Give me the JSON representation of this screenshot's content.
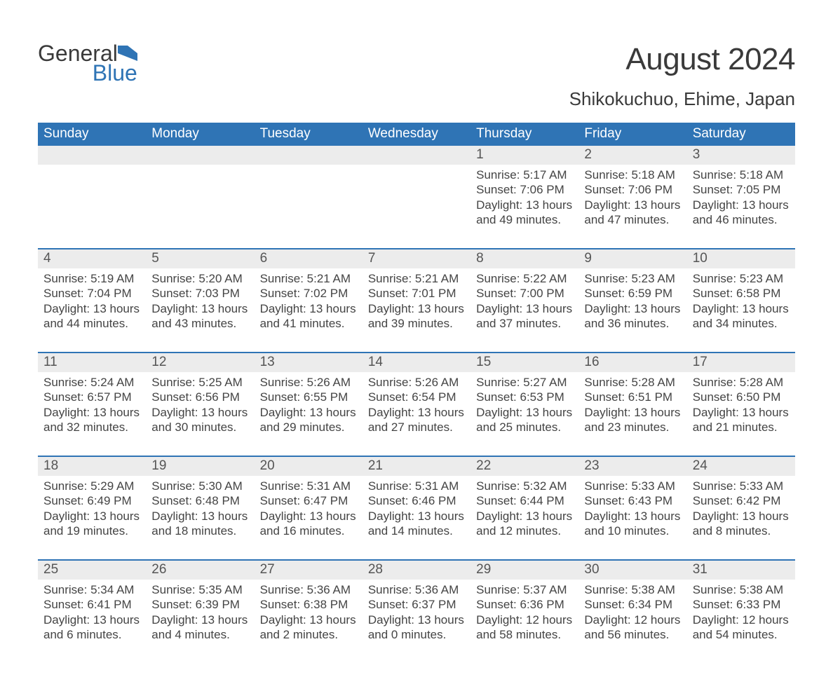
{
  "logo": {
    "word1": "General",
    "word2": "Blue",
    "icon_color": "#2f74b5",
    "text_color": "#3a3a3a"
  },
  "title": "August 2024",
  "subtitle": "Shikokuchuo, Ehime, Japan",
  "colors": {
    "header_bg": "#2f74b5",
    "header_text": "#ffffff",
    "daynum_bg": "#ececec",
    "daynum_text": "#555555",
    "body_text": "#444444",
    "row_divider": "#2f74b5",
    "page_bg": "#ffffff"
  },
  "fonts": {
    "title_size": 44,
    "subtitle_size": 26,
    "header_size": 19,
    "daynum_size": 19,
    "cell_size": 17
  },
  "weekdays": [
    "Sunday",
    "Monday",
    "Tuesday",
    "Wednesday",
    "Thursday",
    "Friday",
    "Saturday"
  ],
  "calendar": {
    "type": "table",
    "columns": 7,
    "weeks": [
      [
        null,
        null,
        null,
        null,
        {
          "day": "1",
          "sunrise": "5:17 AM",
          "sunset": "7:06 PM",
          "daylight": "13 hours and 49 minutes."
        },
        {
          "day": "2",
          "sunrise": "5:18 AM",
          "sunset": "7:06 PM",
          "daylight": "13 hours and 47 minutes."
        },
        {
          "day": "3",
          "sunrise": "5:18 AM",
          "sunset": "7:05 PM",
          "daylight": "13 hours and 46 minutes."
        }
      ],
      [
        {
          "day": "4",
          "sunrise": "5:19 AM",
          "sunset": "7:04 PM",
          "daylight": "13 hours and 44 minutes."
        },
        {
          "day": "5",
          "sunrise": "5:20 AM",
          "sunset": "7:03 PM",
          "daylight": "13 hours and 43 minutes."
        },
        {
          "day": "6",
          "sunrise": "5:21 AM",
          "sunset": "7:02 PM",
          "daylight": "13 hours and 41 minutes."
        },
        {
          "day": "7",
          "sunrise": "5:21 AM",
          "sunset": "7:01 PM",
          "daylight": "13 hours and 39 minutes."
        },
        {
          "day": "8",
          "sunrise": "5:22 AM",
          "sunset": "7:00 PM",
          "daylight": "13 hours and 37 minutes."
        },
        {
          "day": "9",
          "sunrise": "5:23 AM",
          "sunset": "6:59 PM",
          "daylight": "13 hours and 36 minutes."
        },
        {
          "day": "10",
          "sunrise": "5:23 AM",
          "sunset": "6:58 PM",
          "daylight": "13 hours and 34 minutes."
        }
      ],
      [
        {
          "day": "11",
          "sunrise": "5:24 AM",
          "sunset": "6:57 PM",
          "daylight": "13 hours and 32 minutes."
        },
        {
          "day": "12",
          "sunrise": "5:25 AM",
          "sunset": "6:56 PM",
          "daylight": "13 hours and 30 minutes."
        },
        {
          "day": "13",
          "sunrise": "5:26 AM",
          "sunset": "6:55 PM",
          "daylight": "13 hours and 29 minutes."
        },
        {
          "day": "14",
          "sunrise": "5:26 AM",
          "sunset": "6:54 PM",
          "daylight": "13 hours and 27 minutes."
        },
        {
          "day": "15",
          "sunrise": "5:27 AM",
          "sunset": "6:53 PM",
          "daylight": "13 hours and 25 minutes."
        },
        {
          "day": "16",
          "sunrise": "5:28 AM",
          "sunset": "6:51 PM",
          "daylight": "13 hours and 23 minutes."
        },
        {
          "day": "17",
          "sunrise": "5:28 AM",
          "sunset": "6:50 PM",
          "daylight": "13 hours and 21 minutes."
        }
      ],
      [
        {
          "day": "18",
          "sunrise": "5:29 AM",
          "sunset": "6:49 PM",
          "daylight": "13 hours and 19 minutes."
        },
        {
          "day": "19",
          "sunrise": "5:30 AM",
          "sunset": "6:48 PM",
          "daylight": "13 hours and 18 minutes."
        },
        {
          "day": "20",
          "sunrise": "5:31 AM",
          "sunset": "6:47 PM",
          "daylight": "13 hours and 16 minutes."
        },
        {
          "day": "21",
          "sunrise": "5:31 AM",
          "sunset": "6:46 PM",
          "daylight": "13 hours and 14 minutes."
        },
        {
          "day": "22",
          "sunrise": "5:32 AM",
          "sunset": "6:44 PM",
          "daylight": "13 hours and 12 minutes."
        },
        {
          "day": "23",
          "sunrise": "5:33 AM",
          "sunset": "6:43 PM",
          "daylight": "13 hours and 10 minutes."
        },
        {
          "day": "24",
          "sunrise": "5:33 AM",
          "sunset": "6:42 PM",
          "daylight": "13 hours and 8 minutes."
        }
      ],
      [
        {
          "day": "25",
          "sunrise": "5:34 AM",
          "sunset": "6:41 PM",
          "daylight": "13 hours and 6 minutes."
        },
        {
          "day": "26",
          "sunrise": "5:35 AM",
          "sunset": "6:39 PM",
          "daylight": "13 hours and 4 minutes."
        },
        {
          "day": "27",
          "sunrise": "5:36 AM",
          "sunset": "6:38 PM",
          "daylight": "13 hours and 2 minutes."
        },
        {
          "day": "28",
          "sunrise": "5:36 AM",
          "sunset": "6:37 PM",
          "daylight": "13 hours and 0 minutes."
        },
        {
          "day": "29",
          "sunrise": "5:37 AM",
          "sunset": "6:36 PM",
          "daylight": "12 hours and 58 minutes."
        },
        {
          "day": "30",
          "sunrise": "5:38 AM",
          "sunset": "6:34 PM",
          "daylight": "12 hours and 56 minutes."
        },
        {
          "day": "31",
          "sunrise": "5:38 AM",
          "sunset": "6:33 PM",
          "daylight": "12 hours and 54 minutes."
        }
      ]
    ],
    "labels": {
      "sunrise_prefix": "Sunrise: ",
      "sunset_prefix": "Sunset: ",
      "daylight_prefix": "Daylight: "
    }
  }
}
